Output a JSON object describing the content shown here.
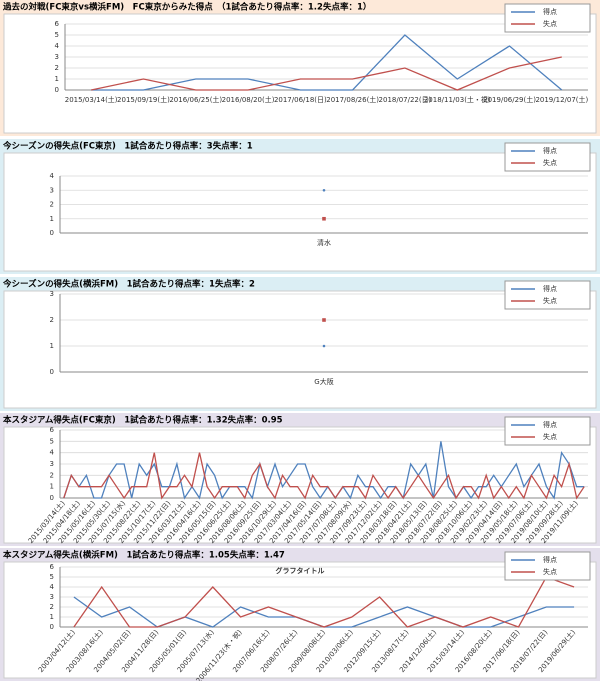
{
  "chart_data": [
    {
      "type": "line",
      "title": "過去の対戦(FC東京vs横浜FM)　FC東京からみた得点　（1試合あたり得点率：1.2失点率：1）",
      "categories": [
        "2015/03/14(土)",
        "2015/09/19(土)",
        "2016/06/25(土)",
        "2016/08/20(土)",
        "2017/06/18(日)",
        "2017/08/26(土)",
        "2018/07/22(日)",
        "2018/11/03(土・祝)",
        "2019/06/29(土)",
        "2019/12/07(土)"
      ],
      "series": [
        {
          "name": "得点",
          "color": "#4f81bd",
          "values": [
            0,
            0,
            1,
            1,
            0,
            0,
            5,
            1,
            4,
            0
          ]
        },
        {
          "name": "失点",
          "color": "#c0504d",
          "values": [
            0,
            1,
            0,
            0,
            1,
            1,
            2,
            0,
            2,
            3
          ]
        }
      ],
      "ylim": [
        0,
        6
      ],
      "yticks": [
        0,
        1,
        2,
        3,
        4,
        5,
        6
      ],
      "grid": true,
      "legend": "top-right"
    },
    {
      "type": "scatter",
      "title": "今シーズンの得失点(FC東京)　1試合あたり得点率：3失点率：1",
      "categories": [
        "清水"
      ],
      "series": [
        {
          "name": "得点",
          "color": "#4f81bd",
          "values": [
            3
          ]
        },
        {
          "name": "失点",
          "color": "#c0504d",
          "values": [
            1
          ]
        }
      ],
      "ylim": [
        0,
        4
      ],
      "yticks": [
        0,
        1,
        2,
        3,
        4
      ],
      "grid": true,
      "legend": "top-right"
    },
    {
      "type": "scatter",
      "title": "今シーズンの得失点(横浜FM)　1試合あたり得点率：1失点率：2",
      "categories": [
        "G大阪"
      ],
      "series": [
        {
          "name": "得点",
          "color": "#4f81bd",
          "values": [
            1
          ]
        },
        {
          "name": "失点",
          "color": "#c0504d",
          "values": [
            2
          ]
        }
      ],
      "ylim": [
        0,
        3
      ],
      "yticks": [
        0,
        1,
        2,
        3
      ],
      "grid": true,
      "legend": "top-right"
    },
    {
      "type": "line",
      "title": "本スタジアム得失点(FC東京)　1試合あたり得点率：1.32失点率：0.95",
      "categories": [
        "2015/03/14(土)",
        null,
        "2015/04/18(土)",
        null,
        "2015/05/16(土)",
        null,
        "2015/05/30(土)",
        null,
        "2015/07/15(水)",
        null,
        "2015/08/22(土)",
        null,
        "2015/10/17(土)",
        null,
        "2015/11/22(日)",
        null,
        "2016/03/12(土)",
        null,
        "2016/04/16(土)",
        null,
        "2016/05/15(日)",
        null,
        "2016/06/25(土)",
        null,
        "2016/08/06(土)",
        null,
        "2016/09/25(日)",
        null,
        "2016/10/29(土)",
        null,
        "2017/03/04(土)",
        null,
        "2017/04/16(日)",
        null,
        "2017/05/14(日)",
        null,
        "2017/07/08(土)",
        null,
        "2017/08/09(水)",
        null,
        "2017/09/23(土)",
        null,
        "2017/12/02(土)",
        null,
        "2018/03/18(日)",
        null,
        "2018/04/21(土)",
        null,
        "2018/05/13(日)",
        null,
        "2018/07/22(日)",
        null,
        "2018/08/25(土)",
        null,
        "2018/10/06(土)",
        null,
        "2019/02/23(土)",
        null,
        "2019/04/14(日)",
        null,
        "2019/05/18(土)",
        null,
        "2019/07/06(土)",
        null,
        "2019/08/10(土)",
        null,
        "2019/09/28(土)",
        null,
        "2019/11/09(土)",
        null
      ],
      "series": [
        {
          "name": "得点",
          "color": "#4f81bd",
          "values": [
            0,
            2,
            1,
            2,
            0,
            0,
            2,
            3,
            3,
            0,
            3,
            2,
            3,
            1,
            1,
            3,
            0,
            1,
            0,
            3,
            2,
            0,
            1,
            1,
            1,
            0,
            3,
            1,
            3,
            1,
            2,
            3,
            3,
            1,
            0,
            1,
            0,
            1,
            0,
            2,
            1,
            1,
            0,
            1,
            1,
            0,
            3,
            2,
            3,
            0,
            5,
            1,
            0,
            1,
            0,
            1,
            1,
            2,
            1,
            2,
            3,
            1,
            2,
            3,
            1,
            0,
            4,
            3,
            1,
            1
          ]
        },
        {
          "name": "失点",
          "color": "#c0504d",
          "values": [
            0,
            2,
            1,
            1,
            1,
            1,
            2,
            1,
            0,
            1,
            1,
            1,
            4,
            0,
            1,
            1,
            2,
            1,
            4,
            1,
            0,
            1,
            1,
            1,
            0,
            2,
            3,
            1,
            0,
            2,
            1,
            1,
            0,
            2,
            1,
            1,
            0,
            1,
            1,
            1,
            0,
            2,
            1,
            0,
            1,
            0,
            1,
            2,
            1,
            0,
            1,
            2,
            0,
            1,
            1,
            0,
            2,
            0,
            1,
            0,
            1,
            0,
            2,
            1,
            0,
            2,
            1,
            3,
            0,
            1
          ]
        }
      ],
      "ylim": [
        0,
        6
      ],
      "yticks": [
        0,
        1,
        2,
        3,
        4,
        5,
        6
      ],
      "grid": true,
      "legend": "top-right"
    },
    {
      "type": "line",
      "title": "本スタジアム得失点(横浜FM)　1試合あたり得点率：1.05失点率：1.47",
      "subtitle": "グラフタイトル",
      "categories": [
        "2003/04/12(土)",
        "2003/08/16(土)",
        "2004/05/02(日)",
        "2004/11/28(日)",
        "2005/05/01(日)",
        "2005/07/13(水)",
        "2006/11/23(木・祝)",
        "2007/06/16(土)",
        "2008/07/26(土)",
        "2009/08/08(土)",
        "2010/03/06(土)",
        "2012/09/15(土)",
        "2013/08/17(土)",
        "2014/12/06(土)",
        "2015/03/14(土)",
        "2016/08/20(土)",
        "2017/06/18(日)",
        "2018/07/22(日)",
        "2019/06/29(土)"
      ],
      "series": [
        {
          "name": "得点",
          "color": "#4f81bd",
          "values": [
            3,
            1,
            2,
            0,
            1,
            0,
            2,
            1,
            1,
            0,
            0,
            1,
            2,
            1,
            0,
            0,
            1,
            2,
            2
          ]
        },
        {
          "name": "失点",
          "color": "#c0504d",
          "values": [
            0,
            4,
            0,
            0,
            1,
            4,
            1,
            2,
            1,
            0,
            1,
            3,
            0,
            1,
            0,
            1,
            0,
            5,
            4
          ]
        }
      ],
      "ylim": [
        0,
        6
      ],
      "yticks": [
        0,
        1,
        2,
        3,
        4,
        5,
        6
      ],
      "grid": true,
      "legend": "top-right"
    }
  ]
}
